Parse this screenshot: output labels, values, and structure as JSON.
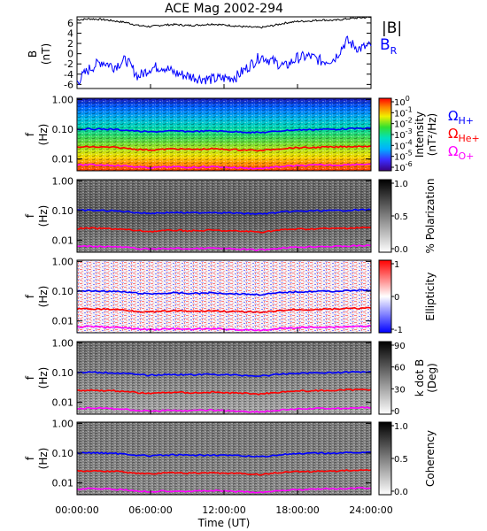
{
  "title": "ACE Mag 2002-294",
  "xaxis": {
    "label": "Time (UT)",
    "ticks": [
      "00:00:00",
      "06:00:00",
      "12:00:00",
      "18:00:00",
      "24:00:00"
    ],
    "hours": [
      0,
      6,
      12,
      18,
      24
    ]
  },
  "legend": {
    "B": "|B|",
    "BR": "B",
    "BR_sub": "R",
    "gH": "Ω",
    "gH_sub": "H+",
    "gHe": "Ω",
    "gHe_sub": "He+",
    "gO": "Ω",
    "gO_sub": "O+"
  },
  "colors": {
    "B": "#000000",
    "BR": "#0000ff",
    "gyro_H": "#0000ff",
    "gyro_He": "#ff0000",
    "gyro_O": "#ff00ff"
  },
  "chart_data": [
    {
      "type": "line",
      "panel": "magnetic field",
      "ylabel": "B",
      "yunit": "(nT)",
      "yticks": [
        "6",
        "4",
        "2",
        "0",
        "-2",
        "-4",
        "-6"
      ],
      "ylim": [
        -6.8,
        7.2
      ],
      "x_hours": [
        0,
        1,
        2,
        3,
        4,
        5,
        6,
        7,
        8,
        9,
        10,
        11,
        12,
        13,
        14,
        15,
        16,
        17,
        18,
        19,
        20,
        21,
        22,
        23,
        24
      ],
      "series": [
        {
          "name": "|B|",
          "values": [
            6.6,
            6.8,
            6.7,
            6.4,
            6.1,
            5.5,
            5.3,
            5.6,
            5.7,
            5.5,
            5.6,
            5.8,
            5.6,
            5.4,
            5.2,
            5.1,
            5.5,
            6.0,
            6.3,
            6.4,
            6.6,
            6.5,
            6.8,
            7.0,
            7.1
          ]
        },
        {
          "name": "B_R",
          "values": [
            -5.5,
            -3.0,
            -1.5,
            -2.5,
            -1.2,
            -4.5,
            -2.8,
            -2.5,
            -3.8,
            -4.3,
            -4.8,
            -5.0,
            -4.8,
            -4.5,
            -2.5,
            -0.5,
            -1.5,
            -2.5,
            -0.8,
            -0.5,
            -1.5,
            -1.0,
            2.5,
            1.0,
            1.5
          ]
        }
      ]
    },
    {
      "type": "heatmap",
      "panel": "intensity",
      "ylabel": "f",
      "yunit": "(Hz)",
      "yticks": [
        "1.00",
        "0.10",
        "0.01"
      ],
      "ylim": [
        0.004,
        1.1
      ],
      "yscale": "log",
      "colorbar": {
        "label": "Intensity",
        "unit": "(nT²/Hz)",
        "ticks": [
          "10",
          "10",
          "10",
          "10",
          "10",
          "10",
          "10"
        ],
        "exponents": [
          "0",
          "-1",
          "-2",
          "-3",
          "-4",
          "-5",
          "-6"
        ]
      }
    },
    {
      "type": "heatmap",
      "panel": "polarization",
      "ylabel": "f",
      "yunit": "(Hz)",
      "yticks": [
        "1.00",
        "0.10",
        "0.01"
      ],
      "colorbar": {
        "label": "% Polarization",
        "ticks": [
          "1.0",
          "0.5",
          "0.0"
        ]
      }
    },
    {
      "type": "heatmap",
      "panel": "ellipticity",
      "ylabel": "f",
      "yunit": "(Hz)",
      "yticks": [
        "1.00",
        "0.10",
        "0.01"
      ],
      "colorbar": {
        "label": "Ellipticity",
        "ticks": [
          "1",
          "0",
          "-1"
        ]
      }
    },
    {
      "type": "heatmap",
      "panel": "k dot B",
      "ylabel": "f",
      "yunit": "(Hz)",
      "yticks": [
        "1.00",
        "0.10",
        "0.01"
      ],
      "colorbar": {
        "label": "k dot B",
        "unit": "(Deg)",
        "ticks": [
          "90",
          "60",
          "30",
          "0"
        ]
      }
    },
    {
      "type": "heatmap",
      "panel": "coherency",
      "ylabel": "f",
      "yunit": "(Hz)",
      "yticks": [
        "1.00",
        "0.10",
        "0.01"
      ],
      "colorbar": {
        "label": "Coherency",
        "ticks": [
          "1.0",
          "0.5",
          "0.0"
        ]
      }
    },
    {
      "type": "line",
      "panel": "gyrofrequency overlays (f in Hz, drawn on all spectral panels)",
      "x_hours": [
        0,
        1,
        2,
        3,
        4,
        5,
        6,
        7,
        8,
        9,
        10,
        11,
        12,
        13,
        14,
        15,
        16,
        17,
        18,
        19,
        20,
        21,
        22,
        23,
        24
      ],
      "series": [
        {
          "name": "Ω H+",
          "values": [
            0.1,
            0.102,
            0.101,
            0.098,
            0.093,
            0.085,
            0.081,
            0.085,
            0.087,
            0.084,
            0.085,
            0.088,
            0.085,
            0.082,
            0.079,
            0.077,
            0.083,
            0.091,
            0.095,
            0.097,
            0.1,
            0.099,
            0.103,
            0.106,
            0.108
          ]
        },
        {
          "name": "Ω He+",
          "values": [
            0.025,
            0.0255,
            0.025,
            0.0245,
            0.023,
            0.021,
            0.02,
            0.021,
            0.022,
            0.021,
            0.021,
            0.022,
            0.021,
            0.0205,
            0.02,
            0.019,
            0.021,
            0.023,
            0.024,
            0.024,
            0.025,
            0.025,
            0.026,
            0.0265,
            0.027
          ]
        },
        {
          "name": "Ω O+",
          "values": [
            0.0062,
            0.0064,
            0.0063,
            0.0061,
            0.0058,
            0.0053,
            0.0051,
            0.0053,
            0.0054,
            0.0052,
            0.0053,
            0.0055,
            0.0053,
            0.0051,
            0.0049,
            0.0048,
            0.0052,
            0.0057,
            0.0059,
            0.0061,
            0.0063,
            0.0062,
            0.0064,
            0.0066,
            0.0067
          ]
        }
      ]
    }
  ]
}
